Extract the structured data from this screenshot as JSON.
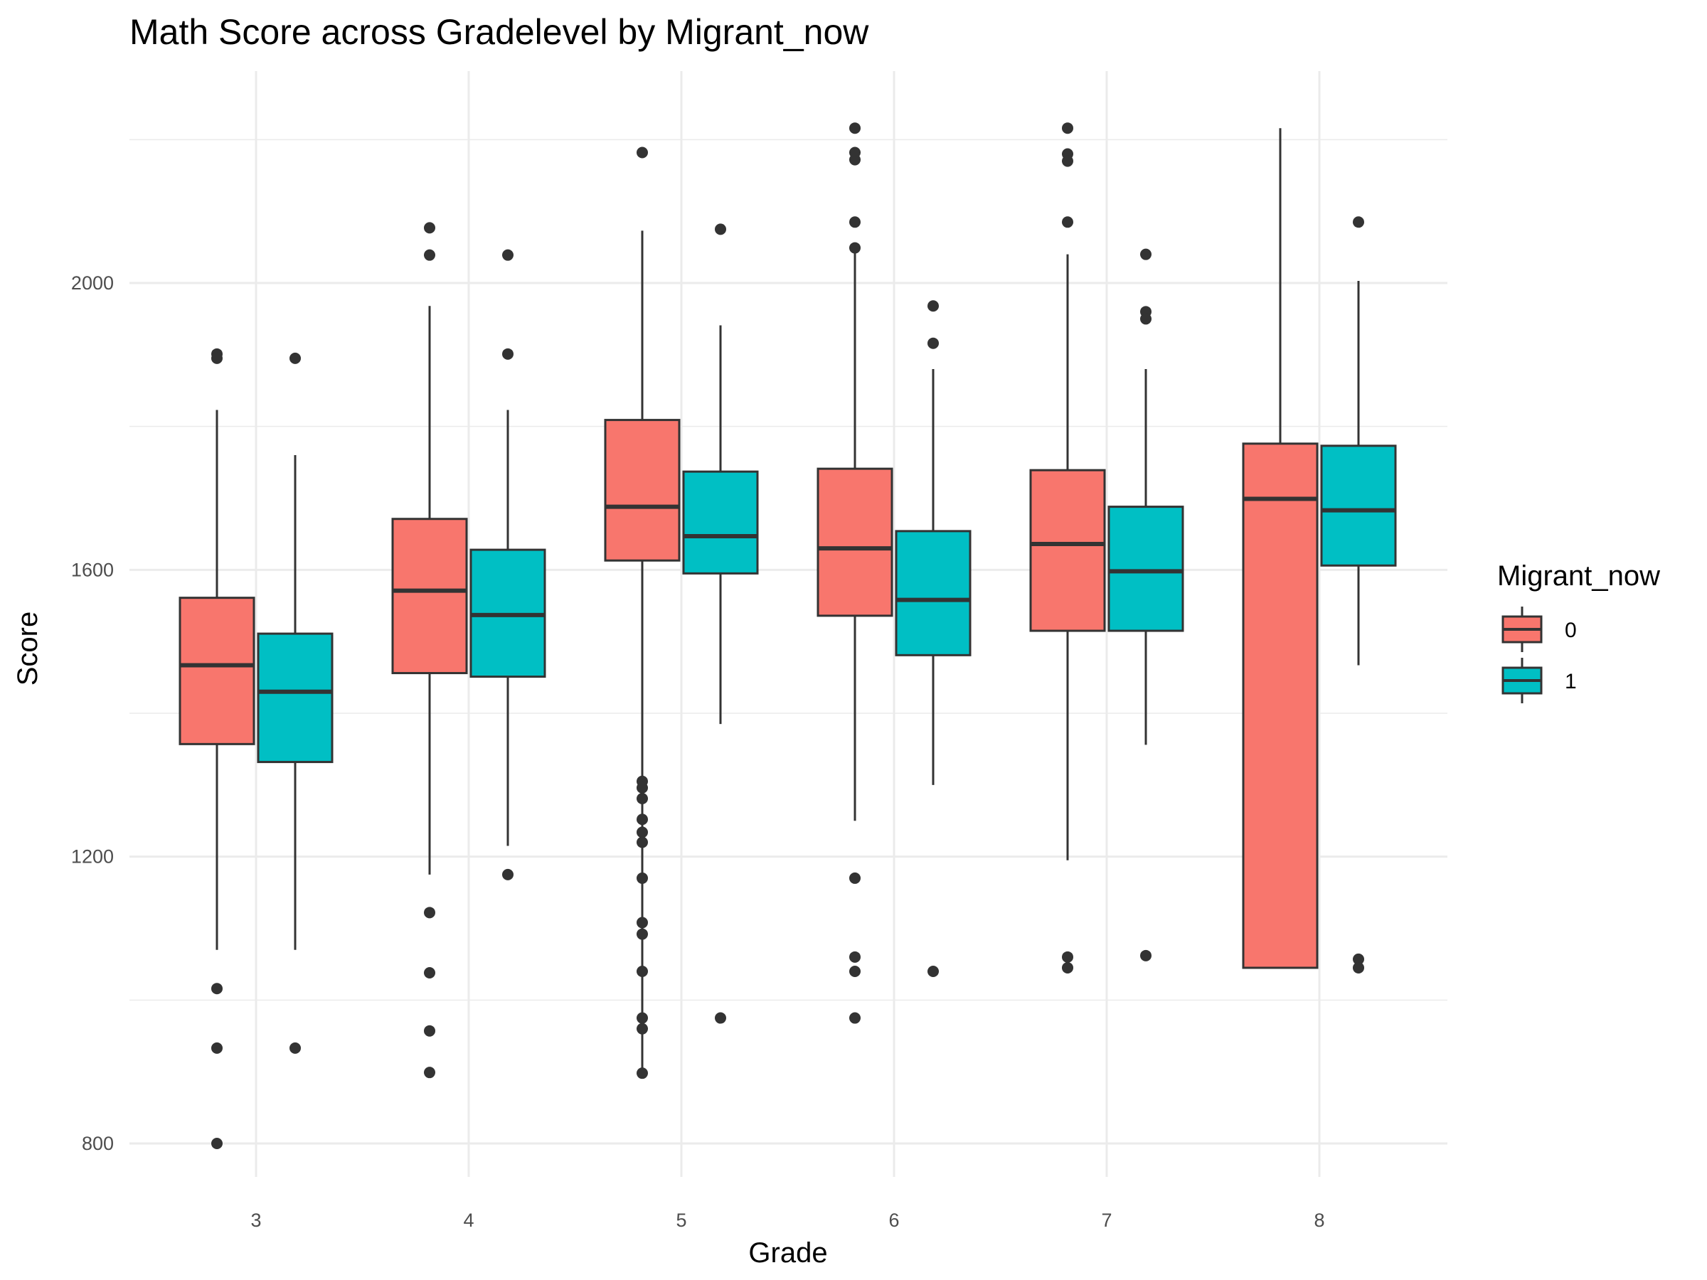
{
  "chart_data": {
    "type": "boxplot",
    "title": "Math Score across Gradelevel by Migrant_now",
    "xlabel": "Grade",
    "ylabel": "Score",
    "categories": [
      "3",
      "4",
      "5",
      "6",
      "7",
      "8"
    ],
    "y_ticks": [
      800,
      1200,
      1600,
      2000
    ],
    "ylim": [
      725,
      2225
    ],
    "grid": true,
    "legend": {
      "title": "Migrant_now",
      "position": "right",
      "entries": [
        {
          "label": "0",
          "color": "#F8766D"
        },
        {
          "label": "1",
          "color": "#00BFC4"
        }
      ]
    },
    "series": [
      {
        "name": "0",
        "color": "#F8766D",
        "boxes": [
          {
            "grade": "3",
            "lower_whisker": 1070,
            "q1": 1357,
            "median": 1467,
            "q3": 1561,
            "upper_whisker": 1823,
            "outliers": [
              1901,
              1895,
              1016,
              933,
              800
            ]
          },
          {
            "grade": "4",
            "lower_whisker": 1175,
            "q1": 1456,
            "median": 1571,
            "q3": 1671,
            "upper_whisker": 1968,
            "outliers": [
              2077,
              2039,
              1122,
              1038,
              957,
              899
            ]
          },
          {
            "grade": "5",
            "lower_whisker": 900,
            "q1": 1613,
            "median": 1688,
            "q3": 1809,
            "upper_whisker": 2073,
            "outliers": [
              2182,
              1305,
              1296,
              1281,
              1252,
              1234,
              1220,
              1170,
              1108,
              1092,
              1040,
              975,
              960,
              898
            ]
          },
          {
            "grade": "6",
            "lower_whisker": 1250,
            "q1": 1536,
            "median": 1630,
            "q3": 1741,
            "upper_whisker": 2047,
            "outliers": [
              2216,
              2182,
              2172,
              2085,
              2049,
              1170,
              1060,
              1040,
              975
            ]
          },
          {
            "grade": "7",
            "lower_whisker": 1195,
            "q1": 1515,
            "median": 1636,
            "q3": 1739,
            "upper_whisker": 2040,
            "outliers": [
              2216,
              2180,
              2170,
              2085,
              1060,
              1045
            ]
          },
          {
            "grade": "8",
            "lower_whisker": 1045,
            "q1": 1045,
            "median": 1699,
            "q3": 1776,
            "upper_whisker": 2216,
            "outliers": []
          }
        ]
      },
      {
        "name": "1",
        "color": "#00BFC4",
        "boxes": [
          {
            "grade": "3",
            "lower_whisker": 1070,
            "q1": 1332,
            "median": 1430,
            "q3": 1511,
            "upper_whisker": 1760,
            "outliers": [
              1895,
              933
            ]
          },
          {
            "grade": "4",
            "lower_whisker": 1215,
            "q1": 1451,
            "median": 1537,
            "q3": 1628,
            "upper_whisker": 1823,
            "outliers": [
              2039,
              1901,
              1175
            ]
          },
          {
            "grade": "5",
            "lower_whisker": 1385,
            "q1": 1595,
            "median": 1647,
            "q3": 1737,
            "upper_whisker": 1941,
            "outliers": [
              2075,
              975
            ]
          },
          {
            "grade": "6",
            "lower_whisker": 1300,
            "q1": 1481,
            "median": 1558,
            "q3": 1654,
            "upper_whisker": 1880,
            "outliers": [
              1968,
              1916,
              1040
            ]
          },
          {
            "grade": "7",
            "lower_whisker": 1356,
            "q1": 1515,
            "median": 1598,
            "q3": 1688,
            "upper_whisker": 1880,
            "outliers": [
              2040,
              1960,
              1950,
              1062
            ]
          },
          {
            "grade": "8",
            "lower_whisker": 1467,
            "q1": 1606,
            "median": 1683,
            "q3": 1773,
            "upper_whisker": 2003,
            "outliers": [
              2085,
              1057,
              1045
            ]
          }
        ]
      }
    ]
  }
}
